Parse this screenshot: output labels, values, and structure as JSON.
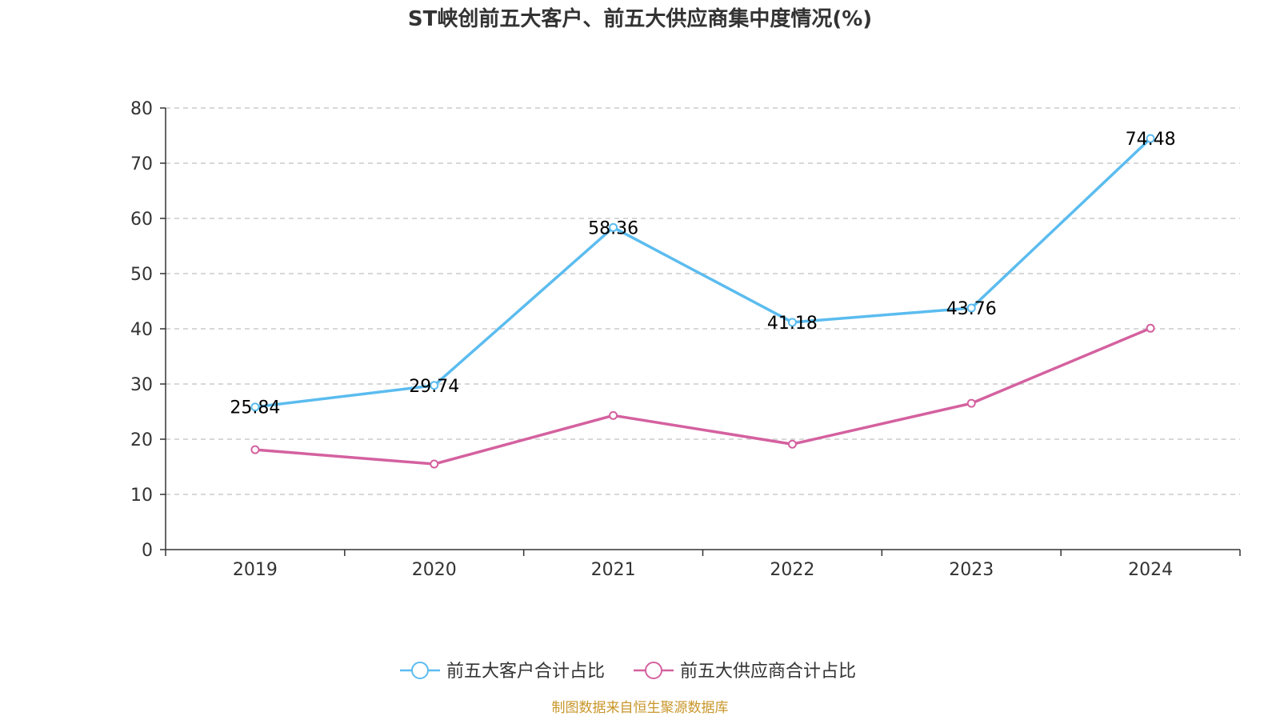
{
  "chart_data": {
    "type": "line",
    "title": "ST峡创前五大客户、前五大供应商集中度情况(%)",
    "xlabel": "",
    "ylabel": "",
    "categories": [
      "2019",
      "2020",
      "2021",
      "2022",
      "2023",
      "2024"
    ],
    "ylim": [
      0,
      80
    ],
    "yticks": [
      0,
      10,
      20,
      30,
      40,
      50,
      60,
      70,
      80
    ],
    "grid": true,
    "legend_position": "bottom",
    "series": [
      {
        "name": "前五大客户合计占比",
        "color": "#5bbcef",
        "values": [
          25.84,
          29.74,
          58.36,
          41.18,
          43.76,
          74.48
        ],
        "labels": [
          "25.84",
          "29.74",
          "58.36",
          "41.18",
          "43.76",
          "74.48"
        ]
      },
      {
        "name": "前五大供应商合计占比",
        "color": "#d4619f",
        "values": [
          18.1,
          15.5,
          24.3,
          19.1,
          26.5,
          40.1
        ]
      }
    ]
  },
  "source_text": "制图数据来自恒生聚源数据库",
  "colors": {
    "axis": "#333333",
    "grid": "#cccccc",
    "source": "#c8962a"
  }
}
